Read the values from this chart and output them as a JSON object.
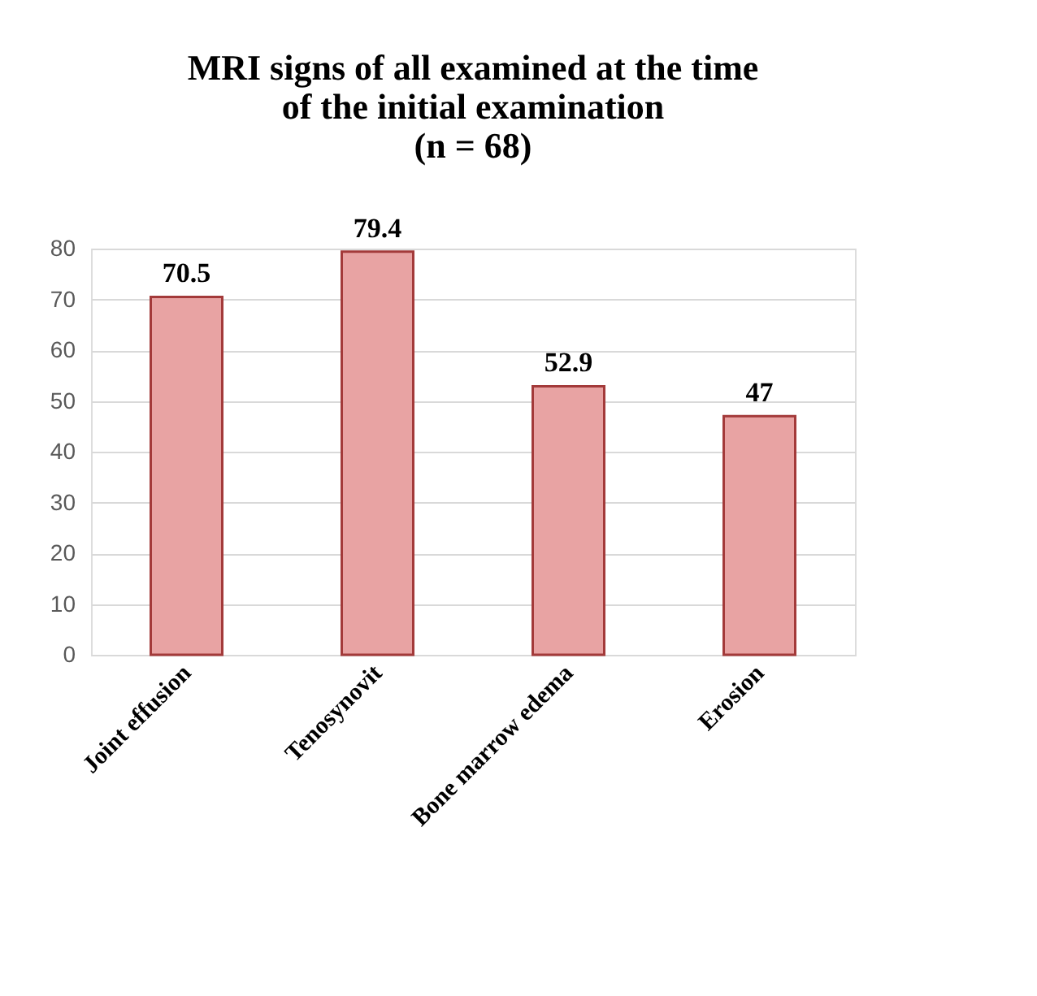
{
  "chart_data": {
    "type": "bar",
    "title": [
      "MRI signs of all examined at the time",
      "of the initial examination",
      "(n = 68)"
    ],
    "categories": [
      "Joint effusion",
      "Tenosynovit",
      "Bone marrow edema",
      "Erosion"
    ],
    "values": [
      70.5,
      79.4,
      52.9,
      47
    ],
    "color": "#e8a3a3",
    "ylim": [
      0,
      80
    ],
    "yticks": [
      0,
      10,
      20,
      30,
      40,
      50,
      60,
      70,
      80
    ],
    "grid": "y",
    "data_labels": true
  }
}
